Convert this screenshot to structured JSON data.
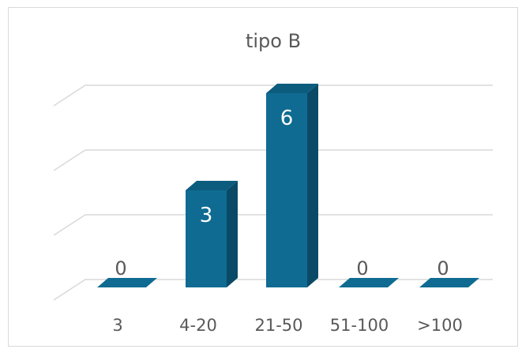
{
  "chart_data": {
    "type": "bar",
    "title": "tipo B",
    "xlabel": "",
    "ylabel": "",
    "categories": [
      "3",
      "4-20",
      "21-50",
      "51-100",
      ">100"
    ],
    "values": [
      0,
      3,
      6,
      0,
      0
    ],
    "data_labels": [
      "0",
      "3",
      "6",
      "0",
      "0"
    ],
    "ylim": [
      0,
      6
    ],
    "grid": true,
    "legend": "none",
    "style": "3d-column",
    "colors": {
      "bar_front": "#0f6b92",
      "bar_side": "#0a4a66",
      "bar_top": "#0c5c7e",
      "gridline": "#d9d9d9",
      "text": "#595959",
      "label_inside": "#ffffff"
    }
  }
}
